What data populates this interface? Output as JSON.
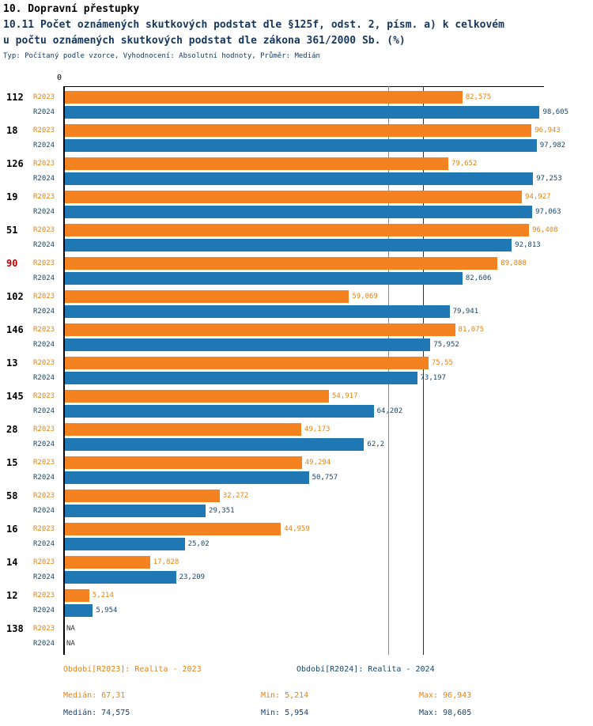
{
  "header": {
    "title": "10. Dopravní přestupky",
    "subtitle_line1": "10.11 Počet oznámených skutkových podstat dle §125f, odst. 2, písm. a) k celkovém",
    "subtitle_line2": "u počtu oznámených skutkových podstat dle zákona 361/2000 Sb. (%)",
    "meta": "Typ: Počítaný podle vzorce, Vyhodnocení: Absolutní hodnoty, Průměr: Medián"
  },
  "axis": {
    "zero_label": "0"
  },
  "colors": {
    "bar_2023": "#F58220",
    "bar_2024": "#1F77B4",
    "text_2023": "#E8820E",
    "text_2024": "#17456E",
    "median_line_2023": "#C87B2E",
    "median_line_2024": "#17365D",
    "category_default": "#000000",
    "category_highlight": "#C00000",
    "na_text": "#333333"
  },
  "chart_data": {
    "type": "bar",
    "orientation": "horizontal",
    "xlim": [
      0,
      100
    ],
    "grid": "median-lines-only",
    "legend_position": "bottom",
    "series": [
      {
        "name": "R2023",
        "color": "#F58220",
        "median": 67.31
      },
      {
        "name": "R2024",
        "color": "#1F77B4",
        "median": 74.575
      }
    ],
    "rows": [
      {
        "label": "112",
        "highlight": false,
        "v2023": 82.575,
        "t2023": "82,575",
        "v2024": 98.605,
        "t2024": "98,605"
      },
      {
        "label": "18",
        "highlight": false,
        "v2023": 96.943,
        "t2023": "96,943",
        "v2024": 97.982,
        "t2024": "97,982"
      },
      {
        "label": "126",
        "highlight": false,
        "v2023": 79.652,
        "t2023": "79,652",
        "v2024": 97.253,
        "t2024": "97,253"
      },
      {
        "label": "19",
        "highlight": false,
        "v2023": 94.927,
        "t2023": "94,927",
        "v2024": 97.063,
        "t2024": "97,063"
      },
      {
        "label": "51",
        "highlight": false,
        "v2023": 96.408,
        "t2023": "96,408",
        "v2024": 92.813,
        "t2024": "92,813"
      },
      {
        "label": "90",
        "highlight": true,
        "v2023": 89.888,
        "t2023": "89,888",
        "v2024": 82.606,
        "t2024": "82,606"
      },
      {
        "label": "102",
        "highlight": false,
        "v2023": 59.069,
        "t2023": "59,069",
        "v2024": 79.941,
        "t2024": "79,941"
      },
      {
        "label": "146",
        "highlight": false,
        "v2023": 81.075,
        "t2023": "81,075",
        "v2024": 75.952,
        "t2024": "75,952"
      },
      {
        "label": "13",
        "highlight": false,
        "v2023": 75.55,
        "t2023": "75,55",
        "v2024": 73.197,
        "t2024": "73,197"
      },
      {
        "label": "145",
        "highlight": false,
        "v2023": 54.917,
        "t2023": "54,917",
        "v2024": 64.202,
        "t2024": "64,202"
      },
      {
        "label": "28",
        "highlight": false,
        "v2023": 49.173,
        "t2023": "49,173",
        "v2024": 62.2,
        "t2024": "62,2"
      },
      {
        "label": "15",
        "highlight": false,
        "v2023": 49.294,
        "t2023": "49,294",
        "v2024": 50.757,
        "t2024": "50,757"
      },
      {
        "label": "58",
        "highlight": false,
        "v2023": 32.272,
        "t2023": "32,272",
        "v2024": 29.351,
        "t2024": "29,351"
      },
      {
        "label": "16",
        "highlight": false,
        "v2023": 44.959,
        "t2023": "44,959",
        "v2024": 25.02,
        "t2024": "25,02"
      },
      {
        "label": "14",
        "highlight": false,
        "v2023": 17.828,
        "t2023": "17,828",
        "v2024": 23.209,
        "t2024": "23,209"
      },
      {
        "label": "12",
        "highlight": false,
        "v2023": 5.214,
        "t2023": "5,214",
        "v2024": 5.954,
        "t2024": "5,954"
      },
      {
        "label": "138",
        "highlight": false,
        "v2023": null,
        "t2023": "NA",
        "v2024": null,
        "t2024": "NA"
      }
    ]
  },
  "legend": {
    "period_2023": "Období[R2023]: Realita - 2023",
    "period_2024": "Období[R2024]: Realita - 2024",
    "median_2023": "Medián: 67,31",
    "min_2023": "Min: 5,214",
    "max_2023": "Max: 96,943",
    "median_2024": "Medián: 74,575",
    "min_2024": "Min: 5,954",
    "max_2024": "Max: 98,605"
  }
}
